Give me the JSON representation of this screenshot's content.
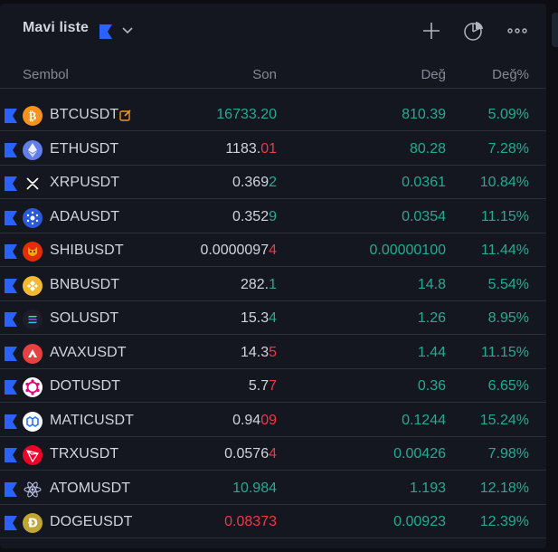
{
  "header": {
    "title": "Mavi liste",
    "flag_color": "#2962ff",
    "icons": [
      "plus-icon",
      "pie-chart-icon",
      "more-icon"
    ]
  },
  "columns": {
    "symbol": "Sembol",
    "last": "Son",
    "change": "Değ",
    "change_pct": "Değ%"
  },
  "colors": {
    "positive": "#22ab94",
    "negative": "#f23645",
    "text": "#d1d4dc",
    "muted": "#868993",
    "flag": "#2962ff"
  },
  "rows": [
    {
      "symbol": "BTCUSDT",
      "icon": "bitcoin-icon",
      "last_prefix": "16733.20",
      "last_tail": "",
      "last_color": "green",
      "change": "810.39",
      "pct": "5.09%",
      "edit": true
    },
    {
      "symbol": "ETHUSDT",
      "icon": "ethereum-icon",
      "last_prefix": "1183.",
      "last_tail": "01",
      "last_color": "down",
      "change": "80.28",
      "pct": "7.28%"
    },
    {
      "symbol": "XRPUSDT",
      "icon": "xrp-icon",
      "last_prefix": "0.369",
      "last_tail": "2",
      "last_color": "up",
      "change": "0.0361",
      "pct": "10.84%"
    },
    {
      "symbol": "ADAUSDT",
      "icon": "cardano-icon",
      "last_prefix": "0.352",
      "last_tail": "9",
      "last_color": "up",
      "change": "0.0354",
      "pct": "11.15%"
    },
    {
      "symbol": "SHIBUSDT",
      "icon": "shiba-icon",
      "last_prefix": "0.0000097",
      "last_tail": "4",
      "last_color": "down",
      "change": "0.00000100",
      "pct": "11.44%"
    },
    {
      "symbol": "BNBUSDT",
      "icon": "bnb-icon",
      "last_prefix": "282.",
      "last_tail": "1",
      "last_color": "up",
      "change": "14.8",
      "pct": "5.54%"
    },
    {
      "symbol": "SOLUSDT",
      "icon": "solana-icon",
      "last_prefix": "15.3",
      "last_tail": "4",
      "last_color": "up",
      "change": "1.26",
      "pct": "8.95%"
    },
    {
      "symbol": "AVAXUSDT",
      "icon": "avalanche-icon",
      "last_prefix": "14.3",
      "last_tail": "5",
      "last_color": "down",
      "change": "1.44",
      "pct": "11.15%"
    },
    {
      "symbol": "DOTUSDT",
      "icon": "polkadot-icon",
      "last_prefix": "5.7",
      "last_tail": "7",
      "last_color": "down",
      "change": "0.36",
      "pct": "6.65%"
    },
    {
      "symbol": "MATICUSDT",
      "icon": "polygon-icon",
      "last_prefix": "0.94",
      "last_tail": "09",
      "last_color": "down",
      "change": "0.1244",
      "pct": "15.24%"
    },
    {
      "symbol": "TRXUSDT",
      "icon": "tron-icon",
      "last_prefix": "0.0576",
      "last_tail": "4",
      "last_color": "down",
      "change": "0.00426",
      "pct": "7.98%"
    },
    {
      "symbol": "ATOMUSDT",
      "icon": "cosmos-icon",
      "last_prefix": "10.984",
      "last_tail": "",
      "last_color": "green",
      "change": "1.193",
      "pct": "12.18%"
    },
    {
      "symbol": "DOGEUSDT",
      "icon": "dogecoin-icon",
      "last_prefix": "0.08373",
      "last_tail": "",
      "last_color": "red",
      "change": "0.00923",
      "pct": "12.39%"
    }
  ]
}
